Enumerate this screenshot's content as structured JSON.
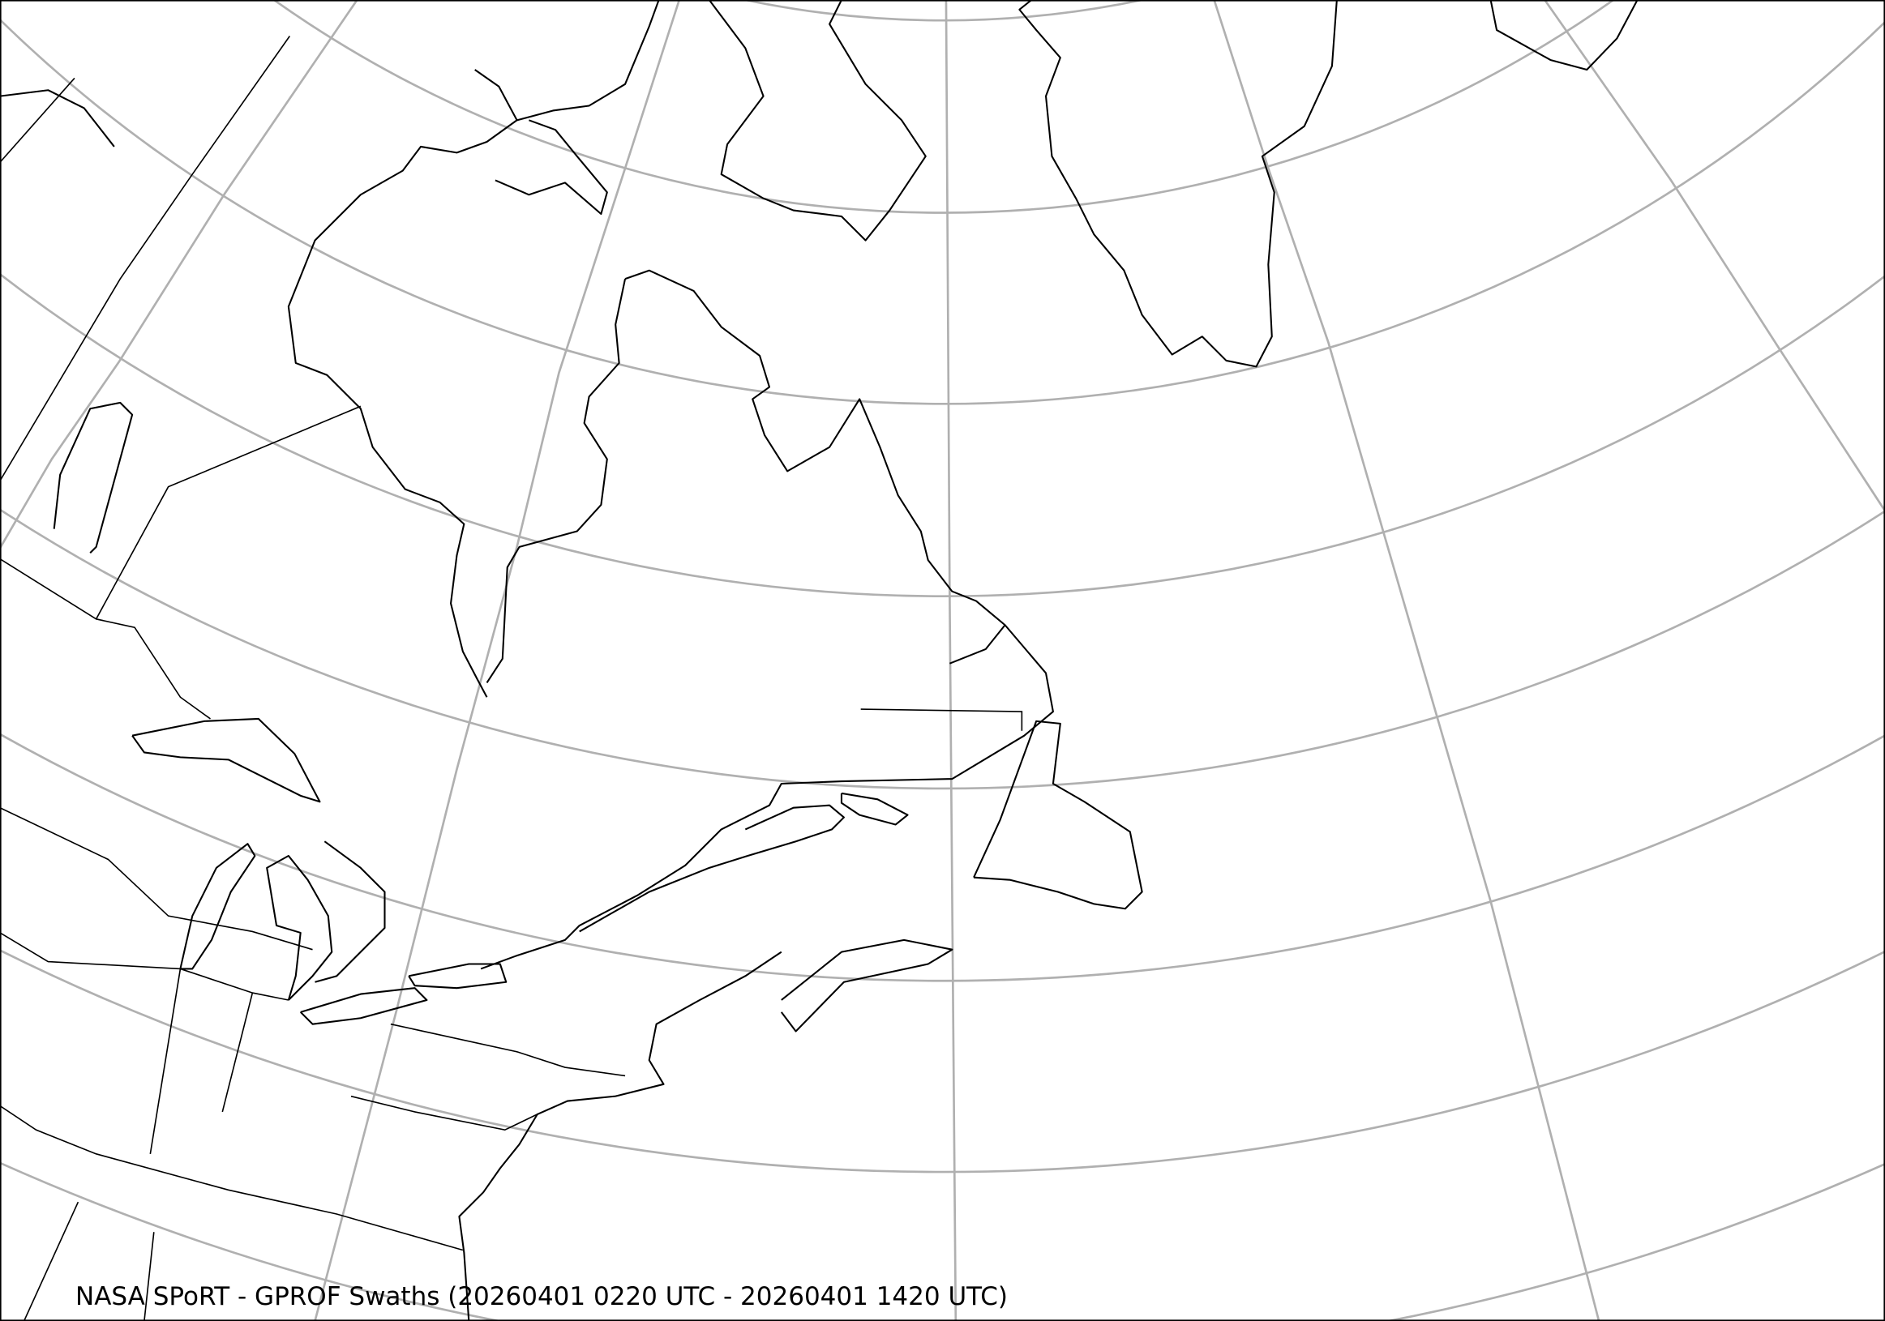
{
  "map": {
    "title": "NASA SPoRT - GPROF Swaths (20260401 0220 UTC - 20260401 1420 UTC)",
    "region": "Northeastern North America, Greenland and the North Atlantic",
    "layers": [
      "coastlines",
      "state-province-borders",
      "lat-lon-gridlines"
    ],
    "colors": {
      "gridlines": "#b0b0b0",
      "coastlines": "#000000",
      "background": "#ffffff"
    }
  }
}
